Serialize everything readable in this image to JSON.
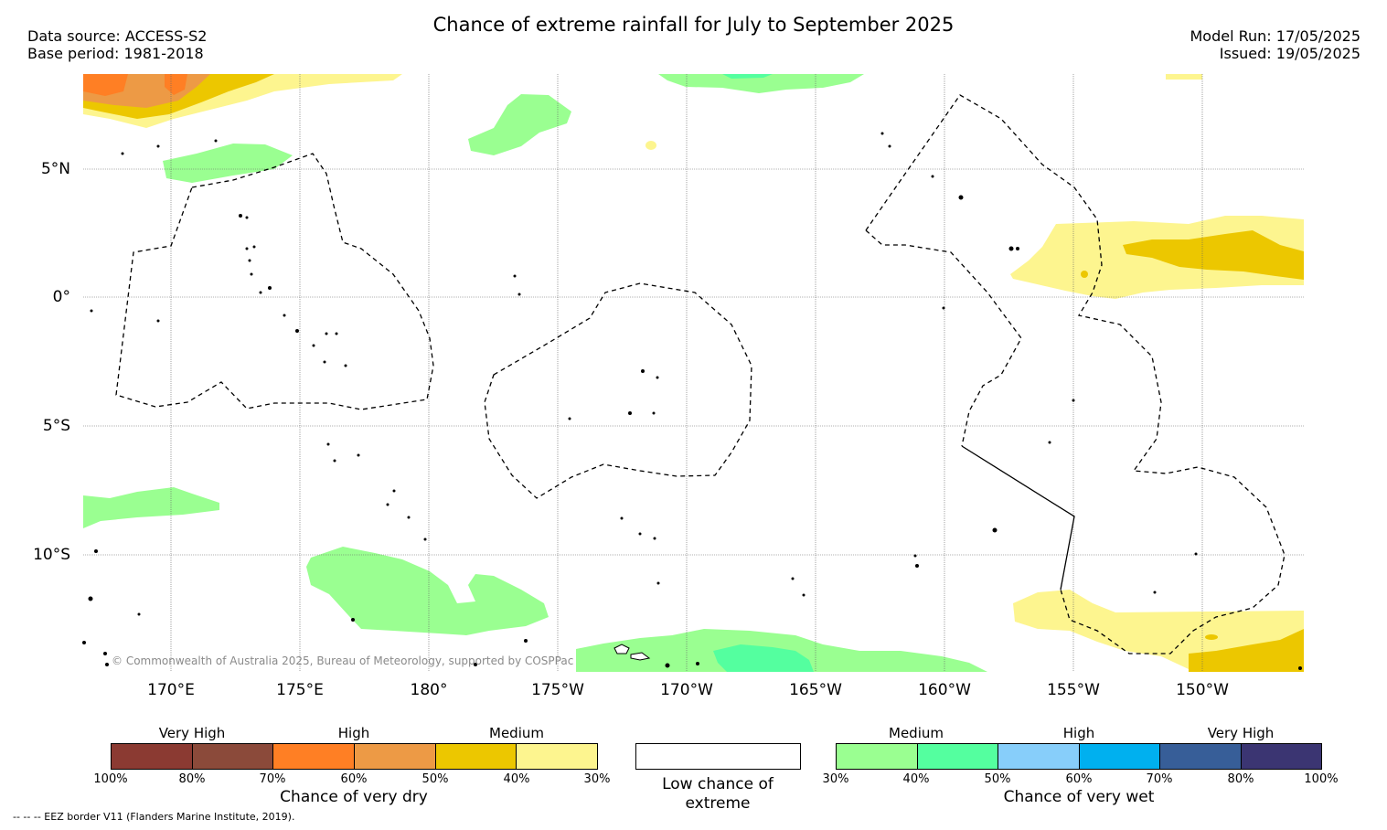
{
  "title": "Chance of extreme rainfall for July to September 2025",
  "meta": {
    "data_source": "Data source: ACCESS-S2",
    "base_period": "Base period: 1981-2018",
    "model_run": "Model Run: 17/05/2025",
    "issued": "Issued: 19/05/2025"
  },
  "map": {
    "lat_labels": [
      "5°N",
      "0°",
      "5°S",
      "10°S"
    ],
    "lon_labels": [
      "170°E",
      "175°E",
      "180°",
      "175°W",
      "170°W",
      "165°W",
      "160°W",
      "155°W",
      "150°W"
    ],
    "copyright": "© Commonwealth of Australia 2025, Bureau of Meteorology, supported by COSPPac"
  },
  "legend": {
    "dry": {
      "categories": [
        "Very High",
        "High",
        "Medium"
      ],
      "ticks": [
        "100%",
        "80%",
        "70%",
        "60%",
        "50%",
        "40%",
        "30%"
      ],
      "colors": [
        "#8b3a32",
        "#8b4a3a",
        "#ff7f24",
        "#ed9a45",
        "#ecc700",
        "#fdf58f"
      ],
      "label": "Chance of very dry"
    },
    "low": {
      "label": "Low chance of extreme",
      "color": "#ffffff"
    },
    "wet": {
      "categories": [
        "Medium",
        "High",
        "Very High"
      ],
      "ticks": [
        "30%",
        "40%",
        "50%",
        "60%",
        "70%",
        "80%",
        "100%"
      ],
      "colors": [
        "#9aff91",
        "#54ff9f",
        "#87cefa",
        "#00b0ef",
        "#375e98",
        "#3b3572"
      ],
      "label": "Chance of very wet"
    },
    "eez_note": "-- -- -- EEZ border V11 (Flanders Marine Institute, 2019)."
  }
}
